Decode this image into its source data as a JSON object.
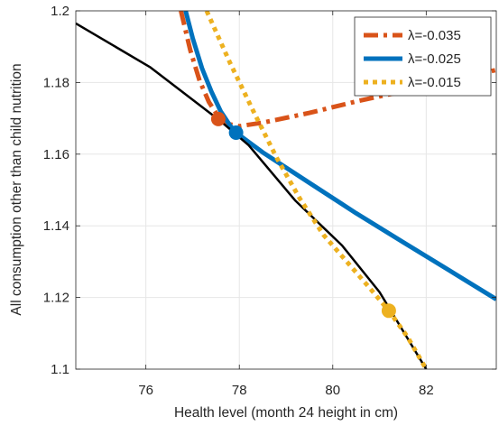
{
  "chart_data": {
    "type": "line",
    "title": "",
    "xlabel": "Health level (month 24 height in cm)",
    "ylabel": "All consumption other than child nutrition",
    "xlim": [
      74.5,
      83.5
    ],
    "ylim": [
      1.1,
      1.2
    ],
    "xticks": [
      76,
      78,
      80,
      82
    ],
    "yticks": [
      1.1,
      1.12,
      1.14,
      1.16,
      1.18,
      1.2
    ],
    "xtick_labels": [
      "76",
      "78",
      "80",
      "82"
    ],
    "ytick_labels": [
      "1.1",
      "1.12",
      "1.14",
      "1.16",
      "1.18",
      "1.2"
    ],
    "grid": true,
    "legend_position": "top-right",
    "frontier": {
      "color": "#000000",
      "x": [
        74.5,
        76.1,
        77.6,
        78.2,
        79.2,
        80.2,
        81.0,
        82.0
      ],
      "y": [
        1.1965,
        1.1842,
        1.1692,
        1.1625,
        1.147,
        1.1345,
        1.1215,
        1.1
      ]
    },
    "series": [
      {
        "name": "λ=-0.035",
        "color": "#D95319",
        "style": "dashdot",
        "x": [
          76.75,
          76.95,
          77.15,
          77.35,
          77.55,
          77.72,
          78.0,
          78.5,
          79.5,
          80.5,
          81.5,
          82.5,
          83.5
        ],
        "y": [
          1.2,
          1.189,
          1.1805,
          1.1745,
          1.1705,
          1.1685,
          1.1678,
          1.1688,
          1.1715,
          1.1747,
          1.1775,
          1.1805,
          1.1835
        ],
        "marker": {
          "x": 77.55,
          "y": 1.1698
        }
      },
      {
        "name": "λ=-0.025",
        "color": "#0072BD",
        "style": "solid",
        "x": [
          76.85,
          77.0,
          77.2,
          77.4,
          77.6,
          77.8,
          77.93,
          78.5,
          79.5,
          80.5,
          81.5,
          82.5,
          83.5
        ],
        "y": [
          1.2,
          1.1925,
          1.184,
          1.1775,
          1.172,
          1.168,
          1.166,
          1.1605,
          1.152,
          1.1435,
          1.1355,
          1.1275,
          1.1195
        ],
        "marker": {
          "x": 77.93,
          "y": 1.166
        }
      },
      {
        "name": "λ=-0.015",
        "color": "#EDB120",
        "style": "dotted",
        "x": [
          77.3,
          77.8,
          78.3,
          78.8,
          79.3,
          79.8,
          80.3,
          80.8,
          81.2,
          81.6,
          82.0
        ],
        "y": [
          1.2,
          1.1855,
          1.172,
          1.159,
          1.1475,
          1.1375,
          1.13,
          1.1225,
          1.1163,
          1.109,
          1.1
        ],
        "marker": {
          "x": 81.2,
          "y": 1.1163
        }
      }
    ]
  }
}
